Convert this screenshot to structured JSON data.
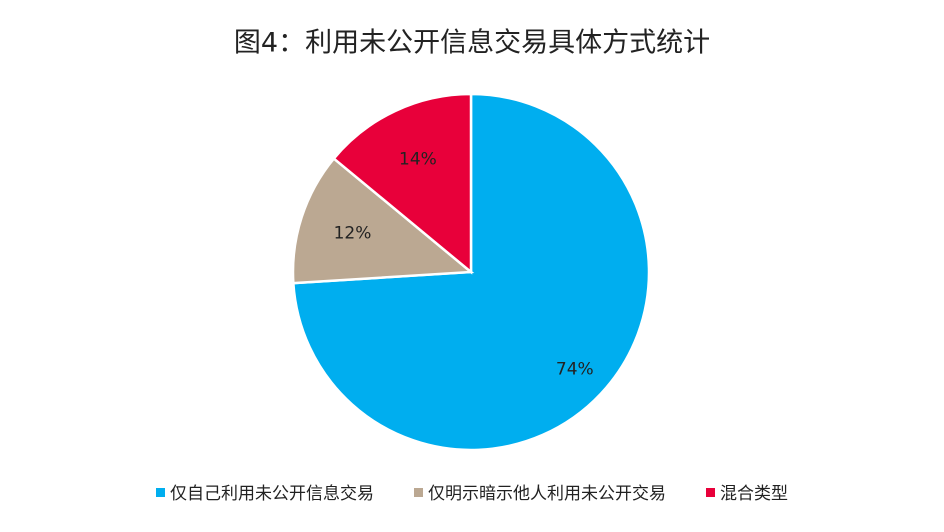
{
  "chart_data": {
    "type": "pie",
    "title": "图4：利用未公开信息交易具体方式统计",
    "categories": [
      "仅自己利用未公开信息交易",
      "仅明示暗示他人利用未公开交易",
      "混合类型"
    ],
    "values": [
      74,
      12,
      14
    ],
    "value_labels": [
      "74%",
      "12%",
      "14%"
    ],
    "colors": [
      "#00aeef",
      "#bba892",
      "#e8003a"
    ],
    "legend": "bottom"
  }
}
